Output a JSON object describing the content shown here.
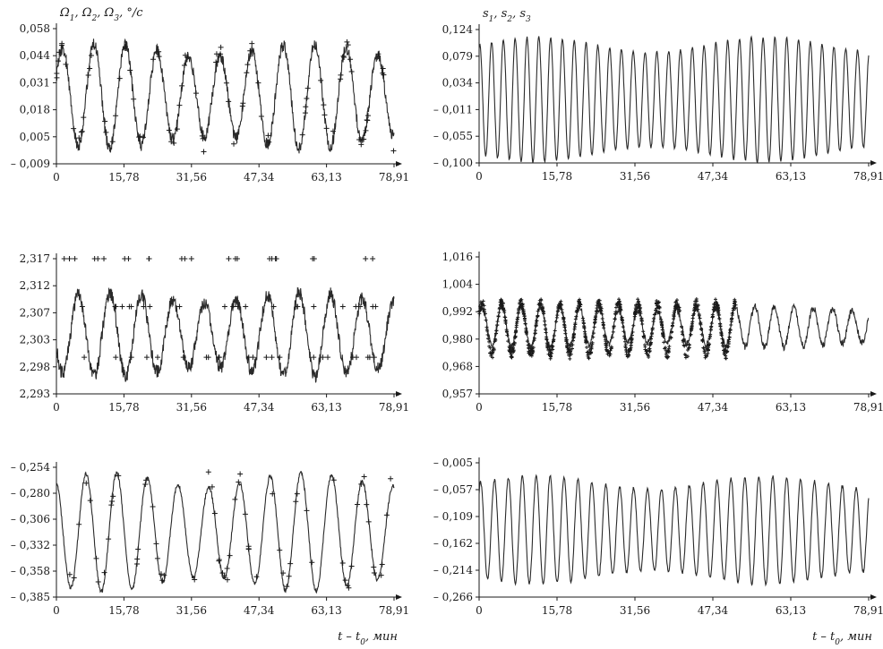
{
  "chart_data": [
    {
      "type": "line",
      "id": "omega-1",
      "title": "Ω1, Ω2, Ω3, °/c",
      "xlabel": "",
      "xticks": [
        "0",
        "15,78",
        "31,56",
        "47,34",
        "63,13",
        "78,91"
      ],
      "xlim": [
        0,
        78.91
      ],
      "yticks": [
        "0,058",
        "0,044",
        "0,031",
        "0,018",
        "0,005",
        "– 0,009"
      ],
      "ylim": [
        -0.009,
        0.058
      ],
      "series": [
        {
          "kind": "line",
          "wave": {
            "center": 0.0245,
            "amplitude": 0.026,
            "cycles": 10.7,
            "phase": 0.4,
            "noise": 0.003
          }
        },
        {
          "kind": "marks",
          "wave": {
            "center": 0.0245,
            "amplitude": 0.028,
            "cycles": 10.7,
            "phase": 0.4,
            "count": 90
          }
        }
      ]
    },
    {
      "type": "line",
      "id": "s-1",
      "title": "s1, s2, s3",
      "xlabel": "",
      "xticks": [
        "0",
        "15,78",
        "31,56",
        "47,34",
        "63,13",
        "78,91"
      ],
      "xlim": [
        0,
        78.91
      ],
      "yticks": [
        "0,124",
        "0,079",
        "0,034",
        "– 0,011",
        "– 0,055",
        "– 0,100"
      ],
      "ylim": [
        -0.1,
        0.124
      ],
      "series": [
        {
          "kind": "line",
          "wave": {
            "center": 0.0065,
            "amplitude": 0.105,
            "cycles": 33,
            "phase": 1.2,
            "noise": 0.002
          }
        }
      ]
    },
    {
      "type": "line",
      "id": "omega-2",
      "xlabel": "",
      "xticks": [
        "0",
        "15,78",
        "31,56",
        "47,34",
        "63,13",
        "78,91"
      ],
      "xlim": [
        0,
        78.91
      ],
      "yticks": [
        "2,317",
        "2,312",
        "2,307",
        "2,303",
        "2,298",
        "2,293"
      ],
      "ylim": [
        2.293,
        2.317
      ],
      "series": [
        {
          "kind": "line",
          "wave": {
            "center": 2.3035,
            "amplitude": 0.0075,
            "cycles": 10.7,
            "phase": 3.5,
            "noise": 0.0012
          }
        },
        {
          "kind": "levels",
          "levels": [
            2.317,
            2.3085,
            2.2995
          ],
          "count": 70
        }
      ]
    },
    {
      "type": "line",
      "id": "s-2",
      "xlabel": "",
      "xticks": [
        "0",
        "15,78",
        "31,56",
        "47,34",
        "63,13",
        "78,91"
      ],
      "xlim": [
        0,
        78.91
      ],
      "yticks": [
        "1,016",
        "1,004",
        "0,992",
        "0,980",
        "0,968",
        "0,957"
      ],
      "ylim": [
        0.957,
        1.016
      ],
      "series": [
        {
          "kind": "line",
          "wave": {
            "center": 0.986,
            "amplitude": 0.009,
            "cycles": 20,
            "phase": 0.6,
            "noise": 0.0015
          }
        },
        {
          "kind": "dense",
          "wave": {
            "center": 0.985,
            "amplitude": 0.013,
            "cycles": 20,
            "phase": 0.6,
            "count": 900,
            "xmax": 52
          }
        }
      ]
    },
    {
      "type": "line",
      "id": "omega-3",
      "xlabel": "t – t0, мин",
      "xticks": [
        "0",
        "15,78",
        "31,56",
        "47,34",
        "63,13",
        "78,91"
      ],
      "xlim": [
        0,
        78.91
      ],
      "yticks": [
        "– 0,254",
        "– 0,280",
        "– 0,306",
        "– 0,332",
        "– 0,358",
        "– 0,385"
      ],
      "ylim": [
        -0.385,
        -0.254
      ],
      "series": [
        {
          "kind": "line",
          "wave": {
            "center": -0.3195,
            "amplitude": 0.06,
            "cycles": 11,
            "phase": 1.8,
            "noise": 0.002
          }
        },
        {
          "kind": "marks",
          "wave": {
            "center": -0.3195,
            "amplitude": 0.062,
            "cycles": 11,
            "phase": 1.8,
            "count": 70
          }
        }
      ]
    },
    {
      "type": "line",
      "id": "s-3",
      "xlabel": "t – t0, мин",
      "xticks": [
        "0",
        "15,78",
        "31,56",
        "47,34",
        "63,13",
        "78,91"
      ],
      "xlim": [
        0,
        78.91
      ],
      "yticks": [
        "– 0,005",
        "– 0,057",
        "– 0,109",
        "– 0,162",
        "– 0,214",
        "– 0,266"
      ],
      "ylim": [
        -0.266,
        -0.005
      ],
      "series": [
        {
          "kind": "line",
          "wave": {
            "center": -0.1355,
            "amplitude": 0.105,
            "cycles": 28,
            "phase": 0.9,
            "noise": 0.003
          }
        }
      ]
    }
  ]
}
